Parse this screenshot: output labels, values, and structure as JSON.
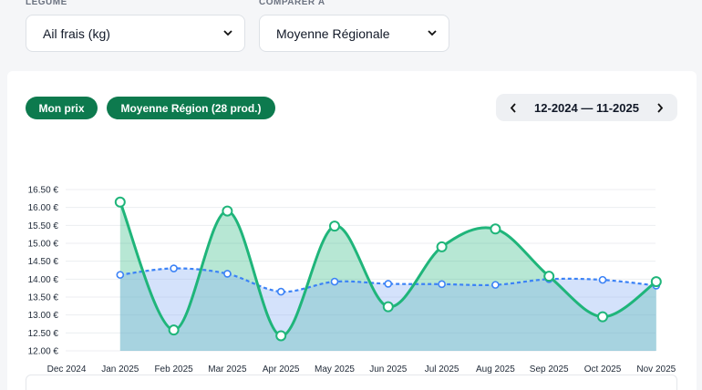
{
  "filters": {
    "vegetable": {
      "label": "LÉGUME",
      "value": "Ail frais (kg)"
    },
    "compare": {
      "label": "COMPARER À",
      "value": "Moyenne Régionale"
    }
  },
  "legend": {
    "my_price": "Mon prix",
    "region_avg": "Moyenne Région (28 prod.)"
  },
  "date_range": {
    "label": "12-2024 — 11-2025"
  },
  "colors": {
    "my_price": "#1fb57a",
    "region": "#3b82f6",
    "pill": "#0d7a4e"
  },
  "chart_data": {
    "type": "line",
    "categories": [
      "Dec 2024",
      "Jan 2025",
      "Feb 2025",
      "Mar 2025",
      "Apr 2025",
      "May 2025",
      "Jun 2025",
      "Jul 2025",
      "Aug 2025",
      "Sep 2025",
      "Oct 2025",
      "Nov 2025"
    ],
    "y_ticks": [
      "12.00 €",
      "12.50 €",
      "13.00 €",
      "13.50 €",
      "14.00 €",
      "14.50 €",
      "15.00 €",
      "15.50 €",
      "16.00 €",
      "16.50 €"
    ],
    "ylim": [
      12.0,
      16.5
    ],
    "grid": true,
    "series": [
      {
        "name": "Mon prix",
        "values": [
          null,
          16.15,
          12.58,
          15.9,
          12.42,
          15.48,
          13.23,
          14.9,
          15.4,
          14.08,
          12.95,
          13.93
        ]
      },
      {
        "name": "Moyenne Région (28 prod.)",
        "values": [
          null,
          14.12,
          14.3,
          14.15,
          13.65,
          13.93,
          13.87,
          13.86,
          13.84,
          14.0,
          13.98,
          13.82
        ]
      }
    ]
  }
}
